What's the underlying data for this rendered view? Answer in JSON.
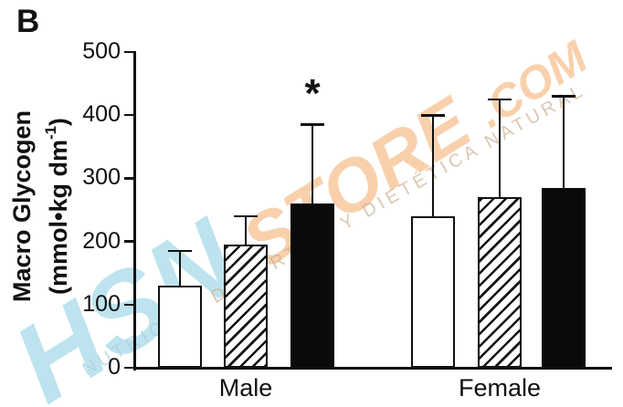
{
  "figure": {
    "panel_label": "B"
  },
  "chart_data": {
    "type": "bar",
    "title": "",
    "ylabel_line1": "Macro Glycogen",
    "ylabel_unit_pre": "(mmol•kg dm",
    "ylabel_unit_sup": "-1",
    "ylabel_unit_post": ")",
    "ylim": [
      0,
      500
    ],
    "yticks": [
      0,
      100,
      200,
      300,
      400,
      500
    ],
    "grid": false,
    "legend_position": "none",
    "groups": [
      "Male",
      "Female"
    ],
    "series": [
      {
        "name": "open-bar",
        "fill": "white",
        "values": [
          130,
          240
        ],
        "upper_error_top": [
          185,
          400
        ]
      },
      {
        "name": "hatched-bar",
        "fill": "diagonal-hatch",
        "values": [
          195,
          270
        ],
        "upper_error_top": [
          240,
          425
        ]
      },
      {
        "name": "solid-bar",
        "fill": "black",
        "values": [
          260,
          285
        ],
        "upper_error_top": [
          385,
          430
        ]
      }
    ],
    "annotations": [
      {
        "text": "*",
        "group_index": 0,
        "series_index": 2
      }
    ]
  },
  "watermark": {
    "brand_primary": "HSN",
    "brand_secondary": "STORE",
    "brand_tld": ".COM",
    "tagline_part1": "NUTRICIÓN",
    "tagline_part2": " DEPORTIVA Y DIETÉTICA NATURAL",
    "color_primary": "#7dc8de",
    "color_secondary": "#f49e54",
    "color_tagline_start": "#a8cfd9",
    "color_tagline_rest": "#cbb091"
  },
  "colors": {
    "axis": "#111111",
    "bar_black": "#0a0a0a",
    "background": "#ffffff"
  }
}
